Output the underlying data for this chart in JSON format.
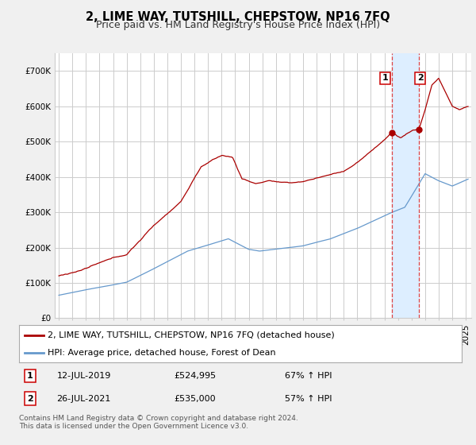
{
  "title": "2, LIME WAY, TUTSHILL, CHEPSTOW, NP16 7FQ",
  "subtitle": "Price paid vs. HM Land Registry's House Price Index (HPI)",
  "ylim": [
    0,
    750000
  ],
  "yticks": [
    0,
    100000,
    200000,
    300000,
    400000,
    500000,
    600000,
    700000
  ],
  "ytick_labels": [
    "£0",
    "£100K",
    "£200K",
    "£300K",
    "£400K",
    "£500K",
    "£600K",
    "£700K"
  ],
  "red_color": "#aa0000",
  "blue_color": "#6699cc",
  "legend_label_red": "2, LIME WAY, TUTSHILL, CHEPSTOW, NP16 7FQ (detached house)",
  "legend_label_blue": "HPI: Average price, detached house, Forest of Dean",
  "sale1_date": "12-JUL-2019",
  "sale1_price": "£524,995",
  "sale1_hpi": "67% ↑ HPI",
  "sale2_date": "26-JUL-2021",
  "sale2_price": "£535,000",
  "sale2_hpi": "57% ↑ HPI",
  "footer": "Contains HM Land Registry data © Crown copyright and database right 2024.\nThis data is licensed under the Open Government Licence v3.0.",
  "background_color": "#f0f0f0",
  "plot_background": "#ffffff",
  "grid_color": "#cccccc",
  "shade_color": "#ddeeff",
  "title_fontsize": 10.5,
  "subtitle_fontsize": 9,
  "tick_fontsize": 7.5,
  "legend_fontsize": 8,
  "table_fontsize": 8,
  "footer_fontsize": 6.5
}
